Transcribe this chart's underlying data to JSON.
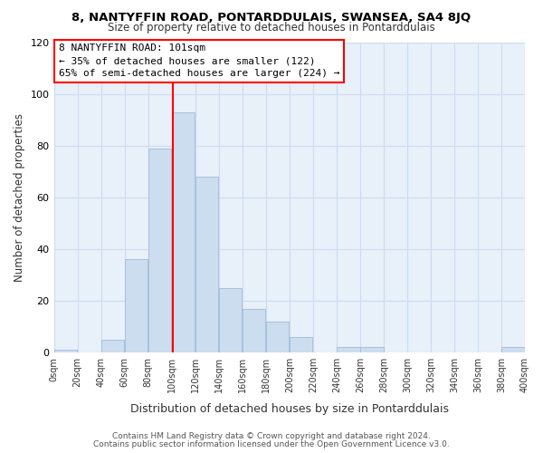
{
  "title": "8, NANTYFFIN ROAD, PONTARDDULAIS, SWANSEA, SA4 8JQ",
  "subtitle": "Size of property relative to detached houses in Pontarddulais",
  "xlabel": "Distribution of detached houses by size in Pontarddulais",
  "ylabel": "Number of detached properties",
  "footer_line1": "Contains HM Land Registry data © Crown copyright and database right 2024.",
  "footer_line2": "Contains public sector information licensed under the Open Government Licence v3.0.",
  "bar_edges": [
    0,
    20,
    40,
    60,
    80,
    100,
    120,
    140,
    160,
    180,
    200,
    220,
    240,
    260,
    280,
    300,
    320,
    340,
    360,
    380,
    400
  ],
  "bar_heights": [
    1,
    0,
    5,
    36,
    79,
    93,
    68,
    25,
    17,
    12,
    6,
    0,
    2,
    2,
    0,
    0,
    0,
    0,
    0,
    2
  ],
  "bar_color": "#ccddf0",
  "bar_edge_color": "#a8c0dc",
  "grid_color": "#ccdcf0",
  "plot_bg_color": "#e8f0fa",
  "fig_bg_color": "#ffffff",
  "annotation_line1": "8 NANTYFFIN ROAD: 101sqm",
  "annotation_line2": "← 35% of detached houses are smaller (122)",
  "annotation_line3": "65% of semi-detached houses are larger (224) →",
  "property_line_x": 101,
  "ylim": [
    0,
    120
  ],
  "yticks": [
    0,
    20,
    40,
    60,
    80,
    100,
    120
  ],
  "xtick_labels": [
    "0sqm",
    "20sqm",
    "40sqm",
    "60sqm",
    "80sqm",
    "100sqm",
    "120sqm",
    "140sqm",
    "160sqm",
    "180sqm",
    "200sqm",
    "220sqm",
    "240sqm",
    "260sqm",
    "280sqm",
    "300sqm",
    "320sqm",
    "340sqm",
    "360sqm",
    "380sqm",
    "400sqm"
  ]
}
